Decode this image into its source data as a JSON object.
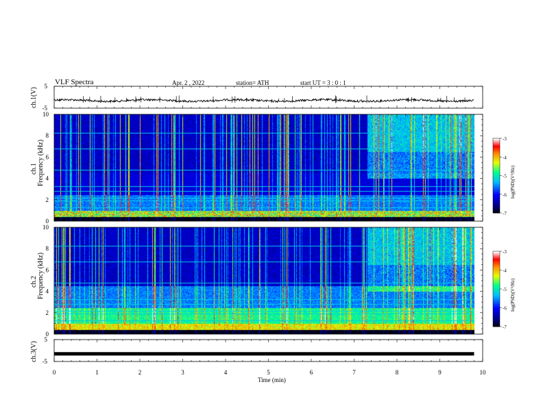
{
  "header": {
    "title": "VLF Spectra",
    "date": "Apr. 2 , 2022",
    "station": "station= ATH",
    "start": "start UT = 3 : 0 : 1"
  },
  "ch1_volt": {
    "ylabel": "ch.1(V)",
    "yticks": [
      "5",
      "-5"
    ]
  },
  "ch3_volt": {
    "ylabel": "ch.3(V)",
    "yticks": [
      "5",
      "-5"
    ]
  },
  "spec1": {
    "ylabel_a": "ch.1",
    "ylabel_b": "Frequency (kHz)",
    "yticks": [
      "10",
      "8",
      "6",
      "4",
      "2",
      "0"
    ]
  },
  "spec2": {
    "ylabel_a": "ch.2",
    "ylabel_b": "Frequency (kHz)",
    "yticks": [
      "10",
      "8",
      "6",
      "4",
      "2",
      "0"
    ]
  },
  "colorbar": {
    "label": "log(PSD)(V²/Hz)",
    "ticks": [
      "-3",
      "-4",
      "-5",
      "-6",
      "-7"
    ]
  },
  "xaxis": {
    "label": "Time (min)",
    "ticks": [
      "0",
      "1",
      "2",
      "3",
      "4",
      "5",
      "6",
      "7",
      "8",
      "9",
      "10"
    ]
  },
  "chart_data": {
    "type": "heatmap",
    "title": "VLF Spectra",
    "xlabel": "Time (min)",
    "xlim": [
      0,
      10
    ],
    "data_end_min": 9.8,
    "panels": [
      {
        "name": "ch.1(V)",
        "kind": "line",
        "ylim": [
          -5,
          5
        ],
        "trace_level_v": -1.5,
        "trace_color": "#000000"
      },
      {
        "name": "ch.1",
        "kind": "spectrogram",
        "ylabel": "Frequency (kHz)",
        "ylim": [
          0,
          10
        ],
        "clim": [
          -7,
          -3
        ],
        "colorbar_label": "log(PSD)(V²/Hz)",
        "enhanced_emission_after_min": 7.3
      },
      {
        "name": "ch.2",
        "kind": "spectrogram",
        "ylabel": "Frequency (kHz)",
        "ylim": [
          0,
          10
        ],
        "clim": [
          -7,
          -3
        ],
        "colorbar_label": "log(PSD)(V²/Hz)",
        "enhanced_emission_after_min": 7.3
      },
      {
        "name": "ch.3(V)",
        "kind": "line",
        "ylim": [
          -5,
          5
        ],
        "trace_level_v": -1.5,
        "trace_color": "#000000"
      }
    ],
    "colormap": [
      "#000000",
      "#00008b",
      "#0000ff",
      "#00bfff",
      "#00ff80",
      "#ffff00",
      "#ff8000",
      "#ff0000",
      "#ffffff"
    ]
  }
}
